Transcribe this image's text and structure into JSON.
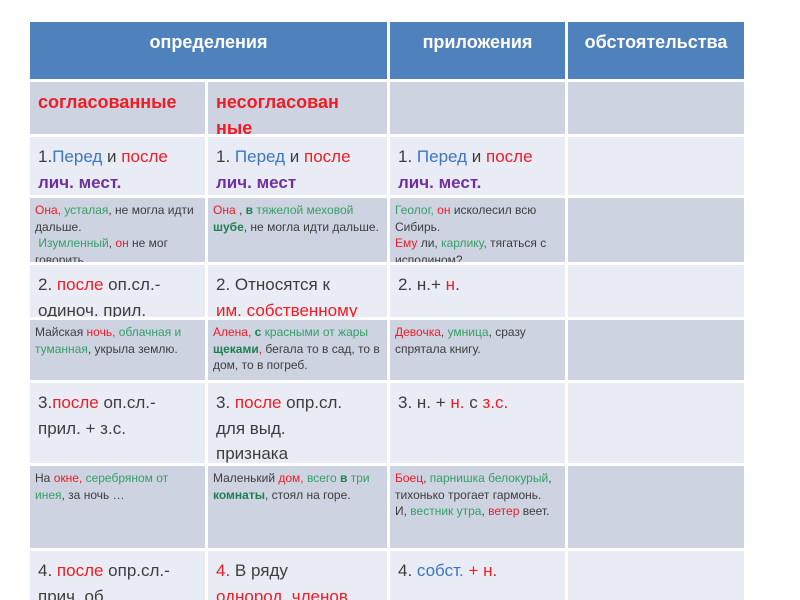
{
  "colors": {
    "header_bg": "#4f81bd",
    "band_dark": "#cdd3e1",
    "band_light": "#e9ecf4",
    "text_dark": "#3d3d3d",
    "red": "#ee1c25",
    "blue": "#3c76c4",
    "purple": "#7030a0",
    "green": "#35a065",
    "green_dark": "#1e8050"
  },
  "table": {
    "header": [
      {
        "name": "definitions",
        "label": "определения",
        "span": 2
      },
      {
        "name": "appositions",
        "label": "приложения",
        "span": 1
      },
      {
        "name": "adverbials",
        "label": "обстоятельства",
        "span": 1
      }
    ],
    "rows": [
      {
        "name": "subheader",
        "kind": "subheader",
        "cells": [
          {
            "runs": [
              {
                "t": "согласованные",
                "c": "red",
                "b": true
              }
            ]
          },
          {
            "narrow": true,
            "runs": [
              {
                "t": "несогласованные",
                "c": "red",
                "b": true
              }
            ]
          },
          {
            "runs": []
          },
          {
            "runs": []
          }
        ]
      },
      {
        "name": "rule-1",
        "kind": "category",
        "cells": [
          {
            "runs": [
              {
                "t": "1.",
                "c": "dark"
              },
              {
                "t": "Перед",
                "c": "blue"
              },
              {
                "t": " и ",
                "c": "dark"
              },
              {
                "t": "после",
                "c": "red"
              },
              {
                "t": "\nлич. мест.",
                "c": "purple",
                "b": true
              }
            ]
          },
          {
            "runs": [
              {
                "t": "1. ",
                "c": "dark"
              },
              {
                "t": "Перед",
                "c": "blue"
              },
              {
                "t": " и ",
                "c": "dark"
              },
              {
                "t": "после",
                "c": "red"
              },
              {
                "t": "\nлич. мест",
                "c": "purple",
                "b": true
              }
            ]
          },
          {
            "runs": [
              {
                "t": "1. ",
                "c": "dark"
              },
              {
                "t": "Перед",
                "c": "blue"
              },
              {
                "t": " и ",
                "c": "dark"
              },
              {
                "t": "после",
                "c": "red"
              },
              {
                "t": "\nлич. мест.",
                "c": "purple",
                "b": true
              }
            ]
          },
          {
            "runs": []
          }
        ]
      },
      {
        "name": "examples-1",
        "kind": "example",
        "cells": [
          {
            "runs": [
              {
                "t": "Она, ",
                "c": "red"
              },
              {
                "t": "усталая",
                "c": "green"
              },
              {
                "t": ", не могла идти дальше.\n ",
                "c": "dark"
              },
              {
                "t": "Изумленный",
                "c": "green"
              },
              {
                "t": ", ",
                "c": "dark"
              },
              {
                "t": "он",
                "c": "red"
              },
              {
                "t": " не мог говорить.",
                "c": "dark"
              }
            ]
          },
          {
            "runs": [
              {
                "t": "Она",
                "c": "red"
              },
              {
                "t": " , ",
                "c": "dark"
              },
              {
                "t": "в",
                "c": "green_dark",
                "b": true
              },
              {
                "t": " тяжелой меховой ",
                "c": "green"
              },
              {
                "t": "шубе",
                "c": "green_dark",
                "b": true
              },
              {
                "t": ", не могла идти дальше.",
                "c": "dark"
              }
            ]
          },
          {
            "runs": [
              {
                "t": "Геолог, ",
                "c": "green"
              },
              {
                "t": "он",
                "c": "red"
              },
              {
                "t": " исколесил всю Сибирь.\n",
                "c": "dark"
              },
              {
                "t": "Ему",
                "c": "red"
              },
              {
                "t": " ли, ",
                "c": "dark"
              },
              {
                "t": "карлику",
                "c": "green"
              },
              {
                "t": ", ",
                "c": "red"
              },
              {
                "t": "тягаться с исполином?",
                "c": "dark"
              }
            ]
          },
          {
            "runs": []
          }
        ]
      },
      {
        "name": "rule-2",
        "kind": "category",
        "cells": [
          {
            "runs": [
              {
                "t": "2. ",
                "c": "dark"
              },
              {
                "t": "после",
                "c": "red"
              },
              {
                "t": " оп.сл.-\nодиноч. прил.",
                "c": "dark"
              }
            ]
          },
          {
            "runs": [
              {
                "t": "2. Относятся к\n",
                "c": "dark"
              },
              {
                "t": "им. собственному",
                "c": "red"
              }
            ]
          },
          {
            "runs": [
              {
                "t": "2. н.+ ",
                "c": "dark"
              },
              {
                "t": "н",
                "c": "red"
              },
              {
                "t": ".",
                "c": "dark"
              }
            ]
          },
          {
            "runs": []
          }
        ]
      },
      {
        "name": "examples-2",
        "kind": "example",
        "cells": [
          {
            "runs": [
              {
                "t": "Майская ",
                "c": "dark"
              },
              {
                "t": "ночь,",
                "c": "red"
              },
              {
                "t": " облачная и туманная",
                "c": "green"
              },
              {
                "t": ", укрыла землю.",
                "c": "dark"
              }
            ]
          },
          {
            "runs": [
              {
                "t": "Алена, ",
                "c": "red"
              },
              {
                "t": "с",
                "c": "green_dark",
                "b": true
              },
              {
                "t": " красными от жары ",
                "c": "green"
              },
              {
                "t": "щеками",
                "c": "green_dark",
                "b": true
              },
              {
                "t": ", ",
                "c": "red"
              },
              {
                "t": "бегала то в сад, то в дом, то в погреб.",
                "c": "dark"
              }
            ]
          },
          {
            "runs": [
              {
                "t": "Девочка",
                "c": "red"
              },
              {
                "t": ", ",
                "c": "dark"
              },
              {
                "t": "умница",
                "c": "green"
              },
              {
                "t": ", сразу спрятала книгу.",
                "c": "dark"
              }
            ]
          },
          {
            "runs": []
          }
        ]
      },
      {
        "name": "rule-3",
        "kind": "category",
        "cells": [
          {
            "runs": [
              {
                "t": "3.",
                "c": "dark"
              },
              {
                "t": "после",
                "c": "red"
              },
              {
                "t": " оп.сл.-\nприл. + з.с.",
                "c": "dark"
              }
            ]
          },
          {
            "runs": [
              {
                "t": "3. ",
                "c": "dark"
              },
              {
                "t": "после",
                "c": "red"
              },
              {
                "t": " опр.сл.\nдля выд.\nпризнака",
                "c": "dark"
              }
            ]
          },
          {
            "runs": [
              {
                "t": "3. н. + ",
                "c": "dark"
              },
              {
                "t": "н.",
                "c": "red"
              },
              {
                "t": " с ",
                "c": "dark"
              },
              {
                "t": "з.с.",
                "c": "red"
              }
            ]
          },
          {
            "runs": []
          }
        ]
      },
      {
        "name": "examples-3",
        "kind": "example",
        "cells": [
          {
            "runs": [
              {
                "t": "На ",
                "c": "dark"
              },
              {
                "t": "окне,",
                "c": "red"
              },
              {
                "t": " серебряном от инея",
                "c": "green"
              },
              {
                "t": ", за ночь …",
                "c": "dark"
              }
            ]
          },
          {
            "runs": [
              {
                "t": "Маленький ",
                "c": "dark"
              },
              {
                "t": "дом,",
                "c": "red"
              },
              {
                "t": " всего ",
                "c": "green"
              },
              {
                "t": "в",
                "c": "green_dark",
                "b": true
              },
              {
                "t": " три ",
                "c": "green"
              },
              {
                "t": "комнаты",
                "c": "green_dark",
                "b": true
              },
              {
                "t": ", стоял на горе.",
                "c": "dark"
              }
            ]
          },
          {
            "runs": [
              {
                "t": "Боец",
                "c": "red"
              },
              {
                "t": ", ",
                "c": "dark"
              },
              {
                "t": "парнишка белокурый",
                "c": "green"
              },
              {
                "t": ", тихонько трогает гармонь.\nИ, ",
                "c": "dark"
              },
              {
                "t": "вестник утра",
                "c": "green"
              },
              {
                "t": ", ",
                "c": "dark"
              },
              {
                "t": "ветер",
                "c": "red"
              },
              {
                "t": " веет.",
                "c": "dark"
              }
            ]
          },
          {
            "runs": []
          }
        ]
      },
      {
        "name": "rule-4",
        "kind": "category",
        "cells": [
          {
            "runs": [
              {
                "t": "4. ",
                "c": "dark"
              },
              {
                "t": "после",
                "c": "red"
              },
              {
                "t": " опр.сл.-\nприч. об.",
                "c": "dark"
              }
            ]
          },
          {
            "runs": [
              {
                "t": "4.",
                "c": "red"
              },
              {
                "t": " В ряду\n",
                "c": "dark"
              },
              {
                "t": "однород. членов",
                "c": "red"
              }
            ]
          },
          {
            "runs": [
              {
                "t": "4. ",
                "c": "dark"
              },
              {
                "t": "собст.",
                "c": "blue"
              },
              {
                "t": " + н.",
                "c": "red"
              }
            ]
          },
          {
            "runs": []
          }
        ]
      }
    ]
  }
}
